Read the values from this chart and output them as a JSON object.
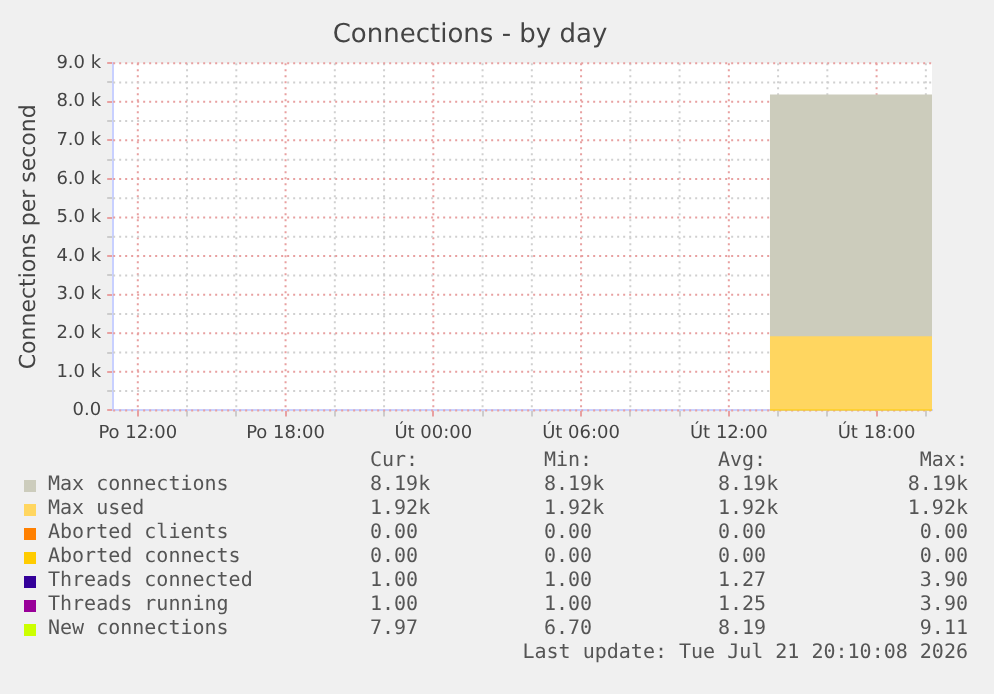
{
  "chart_data": {
    "type": "area",
    "title": "Connections - by day",
    "ylabel": "Connections per second",
    "xlim": [
      "2026-07-20T11:00",
      "2026-07-21T20:15"
    ],
    "xticks": [
      {
        "value": "2026-07-20T12:00",
        "label": "Po 12:00"
      },
      {
        "value": "2026-07-20T14:00",
        "label": null
      },
      {
        "value": "2026-07-20T16:00",
        "label": null
      },
      {
        "value": "2026-07-20T18:00",
        "label": "Po 18:00"
      },
      {
        "value": "2026-07-20T20:00",
        "label": null
      },
      {
        "value": "2026-07-20T22:00",
        "label": null
      },
      {
        "value": "2026-07-21T00:00",
        "label": "Út 00:00"
      },
      {
        "value": "2026-07-21T02:00",
        "label": null
      },
      {
        "value": "2026-07-21T04:00",
        "label": null
      },
      {
        "value": "2026-07-21T06:00",
        "label": "Út 06:00"
      },
      {
        "value": "2026-07-21T08:00",
        "label": null
      },
      {
        "value": "2026-07-21T10:00",
        "label": null
      },
      {
        "value": "2026-07-21T12:00",
        "label": "Út 12:00"
      },
      {
        "value": "2026-07-21T14:00",
        "label": null
      },
      {
        "value": "2026-07-21T16:00",
        "label": null
      },
      {
        "value": "2026-07-21T18:00",
        "label": "Út 18:00"
      },
      {
        "value": "2026-07-21T20:00",
        "label": null
      }
    ],
    "ylim": [
      0,
      9000
    ],
    "yticks": [
      {
        "value": 0,
        "label": "0.0"
      },
      {
        "value": 500,
        "label": null
      },
      {
        "value": 1000,
        "label": "1.0 k"
      },
      {
        "value": 1500,
        "label": null
      },
      {
        "value": 2000,
        "label": "2.0 k"
      },
      {
        "value": 2500,
        "label": null
      },
      {
        "value": 3000,
        "label": "3.0 k"
      },
      {
        "value": 3500,
        "label": null
      },
      {
        "value": 4000,
        "label": "4.0 k"
      },
      {
        "value": 4500,
        "label": null
      },
      {
        "value": 5000,
        "label": "5.0 k"
      },
      {
        "value": 5500,
        "label": null
      },
      {
        "value": 6000,
        "label": "6.0 k"
      },
      {
        "value": 6500,
        "label": null
      },
      {
        "value": 7000,
        "label": "7.0 k"
      },
      {
        "value": 7500,
        "label": null
      },
      {
        "value": 8000,
        "label": "8.0 k"
      },
      {
        "value": 8500,
        "label": null
      },
      {
        "value": 9000,
        "label": "9.0 k"
      }
    ],
    "grid": true,
    "legend": "bottom",
    "series": [
      {
        "name": "Max connections",
        "color": "#ccccbc",
        "x": [
          "2026-07-21T13:40",
          "2026-07-21T20:15"
        ],
        "values": [
          8190,
          8190
        ]
      },
      {
        "name": "Max used",
        "color": "#ffd660",
        "x": [
          "2026-07-21T13:40",
          "2026-07-21T20:15"
        ],
        "values": [
          1920,
          1920
        ]
      },
      {
        "name": "Aborted clients",
        "type": "line",
        "color": "#ff8000"
      },
      {
        "name": "Aborted connects",
        "type": "line",
        "color": "#ffcc00",
        "x": [
          "2026-07-21T13:40",
          "2026-07-21T20:15"
        ],
        "values": [
          0,
          0
        ]
      },
      {
        "name": "Threads connected",
        "type": "line",
        "color": "#330099"
      },
      {
        "name": "Threads running",
        "type": "line",
        "color": "#990099"
      },
      {
        "name": "New connections",
        "type": "line",
        "color": "#ccff00"
      }
    ],
    "annotations": [
      "Cur:",
      "Min:",
      "Avg:",
      "Max:",
      "8.19k",
      "8.19k",
      "8.19k",
      "8.19k",
      "1.92k",
      "1.92k",
      "1.92k",
      "1.92k",
      "0.00",
      "0.00",
      "0.00",
      "0.00",
      "0.00",
      "0.00",
      "0.00",
      "0.00",
      "1.00",
      "1.00",
      "1.27",
      "3.90",
      "1.00",
      "1.00",
      "1.25",
      "3.90",
      "7.97",
      "6.70",
      "8.19",
      "9.11",
      "Last update: Tue Jul 21 20:10:08 2026"
    ]
  }
}
